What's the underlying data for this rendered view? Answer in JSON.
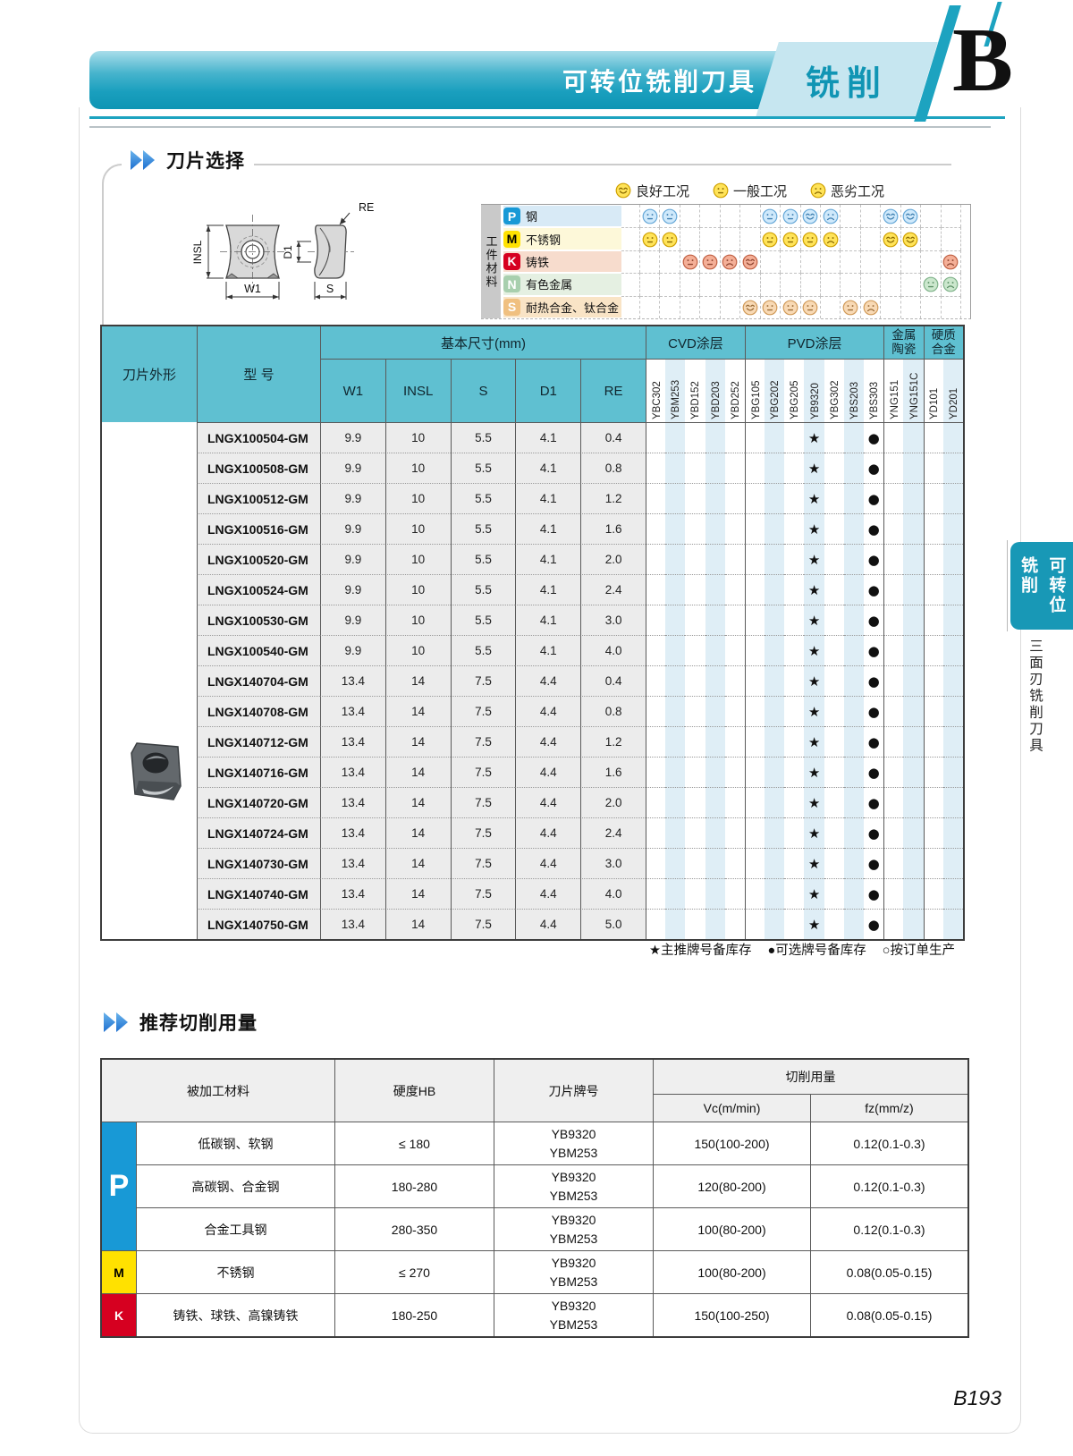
{
  "header": {
    "title": "可转位铣削刀具",
    "category": "铣削",
    "section_letter": "B"
  },
  "colors": {
    "accent_teal": "#0e95b4",
    "tab_bg": "#c6e6f0",
    "table_header": "#5fc0d1",
    "stripe_blue": "#dfeef6",
    "row_gray": "#ececec",
    "sidebar": "#1898b6"
  },
  "insert_selection": {
    "title": "刀片选择",
    "diagram_labels": {
      "re": "RE",
      "insl": "INSL",
      "w1": "W1",
      "d1": "D1",
      "s": "S"
    },
    "legend": [
      {
        "type": "good",
        "label": "良好工况"
      },
      {
        "type": "normal",
        "label": "一般工况"
      },
      {
        "type": "bad",
        "label": "恶劣工况"
      }
    ],
    "material_axis_label": "工件材料",
    "material_rows": [
      {
        "code": "P",
        "name": "钢",
        "chip_bg": "#1899d6",
        "chip_fg": "#ffffff",
        "row_bg": "#d8eaf6",
        "face": {
          "fill": "#cfe9fb",
          "stroke": "#66a8d8",
          "feat": "#3f7fb0"
        },
        "ratings": {
          "YBC302": "normal",
          "YBM253": "normal",
          "YBG202": "normal",
          "YBG205": "normal",
          "YB9320": "good",
          "YBG302": "bad",
          "YNG151": "good",
          "YNG151C": "good"
        }
      },
      {
        "code": "M",
        "name": "不锈钢",
        "chip_bg": "#ffe100",
        "chip_fg": "#000000",
        "row_bg": "#fdf8d9",
        "face": {
          "fill": "#ffe358",
          "stroke": "#cfa000",
          "feat": "#8a6a00"
        },
        "ratings": {
          "YBC302": "normal",
          "YBM253": "normal",
          "YBG202": "normal",
          "YBG205": "normal",
          "YB9320": "normal",
          "YBG302": "bad",
          "YNG151": "good",
          "YNG151C": "good"
        }
      },
      {
        "code": "K",
        "name": "铸铁",
        "chip_bg": "#d60020",
        "chip_fg": "#ffffff",
        "row_bg": "#f7dccd",
        "face": {
          "fill": "#f4af97",
          "stroke": "#c05f42",
          "feat": "#8f4530"
        },
        "ratings": {
          "YBD152": "normal",
          "YBD203": "normal",
          "YBD252": "bad",
          "YBG105": "good",
          "YD201": "bad"
        }
      },
      {
        "code": "N",
        "name": "有色金属",
        "chip_bg": "#a8cfae",
        "chip_fg": "#ffffff",
        "row_bg": "#e5f0e2",
        "face": {
          "fill": "#cbe7cd",
          "stroke": "#7fb289",
          "feat": "#5c8f66"
        },
        "ratings": {
          "YD101": "normal",
          "YD201": "bad"
        }
      },
      {
        "code": "S",
        "name": "耐热合金、钛合金",
        "chip_bg": "#f0c080",
        "chip_fg": "#ffffff",
        "row_bg": "#f9e4c6",
        "face": {
          "fill": "#f8d9b4",
          "stroke": "#d09a58",
          "feat": "#9a6c38"
        },
        "ratings": {
          "YBG105": "good",
          "YBG202": "normal",
          "YBG205": "normal",
          "YB9320": "normal",
          "YBS203": "normal",
          "YBS303": "bad"
        }
      }
    ],
    "legend_face": {
      "fill": "#ffe358",
      "stroke": "#cfa000",
      "feat": "#8a6a00"
    }
  },
  "insert_table": {
    "col_shape": "刀片外形",
    "col_model": "型 号",
    "col_dims": "基本尺寸(mm)",
    "dim_cols": [
      "W1",
      "INSL",
      "S",
      "D1",
      "RE"
    ],
    "brand_groups": [
      {
        "label": "CVD涂层",
        "count": 5
      },
      {
        "label": "PVD涂层",
        "count": 7
      },
      {
        "label": "金属\n陶瓷",
        "count": 2
      },
      {
        "label": "硬质\n合金",
        "count": 2
      }
    ],
    "brands": [
      "YBC302",
      "YBM253",
      "YBD152",
      "YBD203",
      "YBD252",
      "YBG105",
      "YBG202",
      "YBG205",
      "YB9320",
      "YBG302",
      "YBS203",
      "YBS303",
      "YNG151",
      "YNG151C",
      "YD101",
      "YD201"
    ],
    "rows": [
      {
        "model": "LNGX100504-GM",
        "w1": "9.9",
        "insl": "10",
        "s": "5.5",
        "d1": "4.1",
        "re": "0.4",
        "star": "YB9320",
        "dot": "YBS303"
      },
      {
        "model": "LNGX100508-GM",
        "w1": "9.9",
        "insl": "10",
        "s": "5.5",
        "d1": "4.1",
        "re": "0.8",
        "star": "YB9320",
        "dot": "YBS303"
      },
      {
        "model": "LNGX100512-GM",
        "w1": "9.9",
        "insl": "10",
        "s": "5.5",
        "d1": "4.1",
        "re": "1.2",
        "star": "YB9320",
        "dot": "YBS303"
      },
      {
        "model": "LNGX100516-GM",
        "w1": "9.9",
        "insl": "10",
        "s": "5.5",
        "d1": "4.1",
        "re": "1.6",
        "star": "YB9320",
        "dot": "YBS303"
      },
      {
        "model": "LNGX100520-GM",
        "w1": "9.9",
        "insl": "10",
        "s": "5.5",
        "d1": "4.1",
        "re": "2.0",
        "star": "YB9320",
        "dot": "YBS303"
      },
      {
        "model": "LNGX100524-GM",
        "w1": "9.9",
        "insl": "10",
        "s": "5.5",
        "d1": "4.1",
        "re": "2.4",
        "star": "YB9320",
        "dot": "YBS303"
      },
      {
        "model": "LNGX100530-GM",
        "w1": "9.9",
        "insl": "10",
        "s": "5.5",
        "d1": "4.1",
        "re": "3.0",
        "star": "YB9320",
        "dot": "YBS303"
      },
      {
        "model": "LNGX100540-GM",
        "w1": "9.9",
        "insl": "10",
        "s": "5.5",
        "d1": "4.1",
        "re": "4.0",
        "star": "YB9320",
        "dot": "YBS303"
      },
      {
        "model": "LNGX140704-GM",
        "w1": "13.4",
        "insl": "14",
        "s": "7.5",
        "d1": "4.4",
        "re": "0.4",
        "star": "YB9320",
        "dot": "YBS303"
      },
      {
        "model": "LNGX140708-GM",
        "w1": "13.4",
        "insl": "14",
        "s": "7.5",
        "d1": "4.4",
        "re": "0.8",
        "star": "YB9320",
        "dot": "YBS303"
      },
      {
        "model": "LNGX140712-GM",
        "w1": "13.4",
        "insl": "14",
        "s": "7.5",
        "d1": "4.4",
        "re": "1.2",
        "star": "YB9320",
        "dot": "YBS303"
      },
      {
        "model": "LNGX140716-GM",
        "w1": "13.4",
        "insl": "14",
        "s": "7.5",
        "d1": "4.4",
        "re": "1.6",
        "star": "YB9320",
        "dot": "YBS303"
      },
      {
        "model": "LNGX140720-GM",
        "w1": "13.4",
        "insl": "14",
        "s": "7.5",
        "d1": "4.4",
        "re": "2.0",
        "star": "YB9320",
        "dot": "YBS303"
      },
      {
        "model": "LNGX140724-GM",
        "w1": "13.4",
        "insl": "14",
        "s": "7.5",
        "d1": "4.4",
        "re": "2.4",
        "star": "YB9320",
        "dot": "YBS303"
      },
      {
        "model": "LNGX140730-GM",
        "w1": "13.4",
        "insl": "14",
        "s": "7.5",
        "d1": "4.4",
        "re": "3.0",
        "star": "YB9320",
        "dot": "YBS303"
      },
      {
        "model": "LNGX140740-GM",
        "w1": "13.4",
        "insl": "14",
        "s": "7.5",
        "d1": "4.4",
        "re": "4.0",
        "star": "YB9320",
        "dot": "YBS303"
      },
      {
        "model": "LNGX140750-GM",
        "w1": "13.4",
        "insl": "14",
        "s": "7.5",
        "d1": "4.4",
        "re": "5.0",
        "star": "YB9320",
        "dot": "YBS303"
      }
    ],
    "footnote_items": [
      "★主推牌号备库存",
      "●可选牌号备库存",
      "○按订单生产"
    ]
  },
  "cutting_params": {
    "title": "推荐切削用量",
    "headers": {
      "material": "被加工材料",
      "hardness": "硬度HB",
      "grade": "刀片牌号",
      "usage": "切削用量",
      "vc": "Vc(m/min)",
      "fz": "fz(mm/z)"
    },
    "rows": [
      {
        "group": "P",
        "group_bg": "#1899d6",
        "group_fg": "#ffffff",
        "span": 3,
        "material": "低碳钢、软钢",
        "hardness": "≤ 180",
        "grades": "YB9320\nYBM253",
        "vc": "150(100-200)",
        "fz": "0.12(0.1-0.3)"
      },
      {
        "material": "高碳钢、合金钢",
        "hardness": "180-280",
        "grades": "YB9320\nYBM253",
        "vc": "120(80-200)",
        "fz": "0.12(0.1-0.3)"
      },
      {
        "material": "合金工具钢",
        "hardness": "280-350",
        "grades": "YB9320\nYBM253",
        "vc": "100(80-200)",
        "fz": "0.12(0.1-0.3)"
      },
      {
        "group": "M",
        "group_bg": "#ffe100",
        "group_fg": "#000000",
        "span": 1,
        "material": "不锈钢",
        "hardness": "≤ 270",
        "grades": "YB9320\nYBM253",
        "vc": "100(80-200)",
        "fz": "0.08(0.05-0.15)"
      },
      {
        "group": "K",
        "group_bg": "#d60020",
        "group_fg": "#ffffff",
        "span": 1,
        "material": "铸铁、球铁、高镍铸铁",
        "hardness": "180-250",
        "grades": "YB9320\nYBM253",
        "vc": "150(100-250)",
        "fz": "0.08(0.05-0.15)"
      }
    ]
  },
  "sidebar": {
    "tab_line1": "可转位",
    "tab_line2": "铣削",
    "vertical_label": "三面刃铣削刀具"
  },
  "page_number": "B193"
}
